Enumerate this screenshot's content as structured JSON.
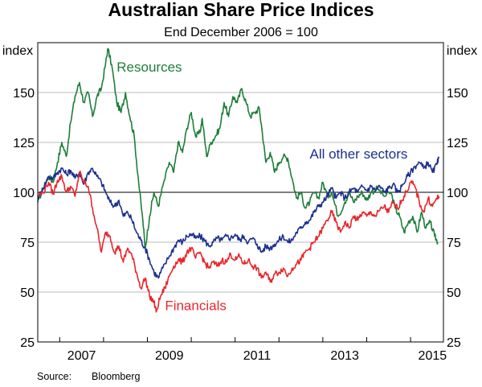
{
  "chart_data": {
    "type": "line",
    "title": "Australian Share Price Indices",
    "subtitle": "End December 2006 = 100",
    "ylabel_left": "index",
    "ylabel_right": "index",
    "ylim": [
      25,
      175
    ],
    "yticks": [
      25,
      50,
      75,
      100,
      125,
      150
    ],
    "xlim": [
      2006.5,
      2015.75
    ],
    "xticks": [
      {
        "label": "2007",
        "value": 2007.5
      },
      {
        "label": "2009",
        "value": 2009.5
      },
      {
        "label": "2011",
        "value": 2011.5
      },
      {
        "label": "2013",
        "value": 2013.5
      },
      {
        "label": "2015",
        "value": 2015.5
      }
    ],
    "reference_line": 100,
    "source_label": "Source:",
    "source_value": "Bloomberg",
    "series": [
      {
        "name": "Resources",
        "color": "#1e7d3a",
        "label": "Resources",
        "points": [
          [
            2006.5,
            95
          ],
          [
            2006.62,
            102
          ],
          [
            2006.75,
            108
          ],
          [
            2006.85,
            105
          ],
          [
            2006.95,
            115
          ],
          [
            2007.05,
            125
          ],
          [
            2007.15,
            118
          ],
          [
            2007.25,
            135
          ],
          [
            2007.35,
            148
          ],
          [
            2007.45,
            155
          ],
          [
            2007.55,
            145
          ],
          [
            2007.65,
            150
          ],
          [
            2007.75,
            138
          ],
          [
            2007.85,
            148
          ],
          [
            2007.95,
            152
          ],
          [
            2008.05,
            165
          ],
          [
            2008.1,
            172
          ],
          [
            2008.2,
            162
          ],
          [
            2008.3,
            145
          ],
          [
            2008.4,
            140
          ],
          [
            2008.5,
            150
          ],
          [
            2008.6,
            138
          ],
          [
            2008.7,
            128
          ],
          [
            2008.8,
            105
          ],
          [
            2008.9,
            85
          ],
          [
            2008.95,
            72
          ],
          [
            2009.05,
            88
          ],
          [
            2009.15,
            100
          ],
          [
            2009.25,
            93
          ],
          [
            2009.35,
            103
          ],
          [
            2009.5,
            115
          ],
          [
            2009.6,
            110
          ],
          [
            2009.7,
            125
          ],
          [
            2009.8,
            120
          ],
          [
            2009.9,
            132
          ],
          [
            2010.0,
            140
          ],
          [
            2010.1,
            128
          ],
          [
            2010.2,
            130
          ],
          [
            2010.25,
            137
          ],
          [
            2010.35,
            118
          ],
          [
            2010.45,
            125
          ],
          [
            2010.55,
            128
          ],
          [
            2010.65,
            132
          ],
          [
            2010.75,
            145
          ],
          [
            2010.85,
            138
          ],
          [
            2010.95,
            148
          ],
          [
            2011.05,
            145
          ],
          [
            2011.15,
            152
          ],
          [
            2011.25,
            145
          ],
          [
            2011.35,
            138
          ],
          [
            2011.45,
            140
          ],
          [
            2011.55,
            142
          ],
          [
            2011.62,
            130
          ],
          [
            2011.7,
            115
          ],
          [
            2011.8,
            120
          ],
          [
            2011.9,
            110
          ],
          [
            2012.0,
            115
          ],
          [
            2012.1,
            118
          ],
          [
            2012.2,
            117
          ],
          [
            2012.3,
            107
          ],
          [
            2012.4,
            97
          ],
          [
            2012.5,
            100
          ],
          [
            2012.6,
            92
          ],
          [
            2012.7,
            95
          ],
          [
            2012.8,
            100
          ],
          [
            2012.9,
            97
          ],
          [
            2013.0,
            105
          ],
          [
            2013.1,
            98
          ],
          [
            2013.2,
            100
          ],
          [
            2013.35,
            88
          ],
          [
            2013.5,
            95
          ],
          [
            2013.6,
            100
          ],
          [
            2013.7,
            95
          ],
          [
            2013.8,
            98
          ],
          [
            2013.9,
            100
          ],
          [
            2014.0,
            96
          ],
          [
            2014.1,
            100
          ],
          [
            2014.25,
            102
          ],
          [
            2014.4,
            98
          ],
          [
            2014.55,
            100
          ],
          [
            2014.65,
            92
          ],
          [
            2014.75,
            88
          ],
          [
            2014.85,
            80
          ],
          [
            2014.95,
            85
          ],
          [
            2015.05,
            88
          ],
          [
            2015.15,
            80
          ],
          [
            2015.25,
            90
          ],
          [
            2015.35,
            82
          ],
          [
            2015.45,
            85
          ],
          [
            2015.55,
            78
          ],
          [
            2015.62,
            75
          ]
        ]
      },
      {
        "name": "All other sectors",
        "color": "#1c2f8f",
        "label": "All other sectors",
        "points": [
          [
            2006.5,
            97
          ],
          [
            2006.62,
            102
          ],
          [
            2006.75,
            108
          ],
          [
            2006.85,
            107
          ],
          [
            2006.95,
            110
          ],
          [
            2007.05,
            112
          ],
          [
            2007.15,
            109
          ],
          [
            2007.25,
            111
          ],
          [
            2007.35,
            107
          ],
          [
            2007.45,
            110
          ],
          [
            2007.55,
            104
          ],
          [
            2007.65,
            110
          ],
          [
            2007.75,
            112
          ],
          [
            2007.85,
            108
          ],
          [
            2007.95,
            105
          ],
          [
            2008.05,
            100
          ],
          [
            2008.15,
            95
          ],
          [
            2008.25,
            93
          ],
          [
            2008.35,
            96
          ],
          [
            2008.45,
            88
          ],
          [
            2008.55,
            90
          ],
          [
            2008.65,
            86
          ],
          [
            2008.75,
            80
          ],
          [
            2008.85,
            76
          ],
          [
            2008.95,
            72
          ],
          [
            2009.05,
            66
          ],
          [
            2009.15,
            60
          ],
          [
            2009.25,
            57
          ],
          [
            2009.35,
            62
          ],
          [
            2009.5,
            68
          ],
          [
            2009.6,
            72
          ],
          [
            2009.7,
            76
          ],
          [
            2009.8,
            75
          ],
          [
            2009.9,
            78
          ],
          [
            2010.0,
            79
          ],
          [
            2010.1,
            77
          ],
          [
            2010.2,
            78
          ],
          [
            2010.3,
            76
          ],
          [
            2010.4,
            73
          ],
          [
            2010.5,
            75
          ],
          [
            2010.6,
            77
          ],
          [
            2010.7,
            76
          ],
          [
            2010.8,
            78
          ],
          [
            2010.9,
            77
          ],
          [
            2011.0,
            79
          ],
          [
            2011.1,
            76
          ],
          [
            2011.2,
            78
          ],
          [
            2011.3,
            75
          ],
          [
            2011.4,
            77
          ],
          [
            2011.5,
            74
          ],
          [
            2011.6,
            70
          ],
          [
            2011.7,
            73
          ],
          [
            2011.8,
            72
          ],
          [
            2011.9,
            74
          ],
          [
            2012.0,
            76
          ],
          [
            2012.1,
            78
          ],
          [
            2012.2,
            75
          ],
          [
            2012.3,
            76
          ],
          [
            2012.4,
            80
          ],
          [
            2012.5,
            82
          ],
          [
            2012.6,
            85
          ],
          [
            2012.7,
            86
          ],
          [
            2012.8,
            90
          ],
          [
            2012.9,
            93
          ],
          [
            2013.0,
            95
          ],
          [
            2013.1,
            98
          ],
          [
            2013.2,
            102
          ],
          [
            2013.3,
            97
          ],
          [
            2013.4,
            100
          ],
          [
            2013.5,
            97
          ],
          [
            2013.6,
            100
          ],
          [
            2013.7,
            102
          ],
          [
            2013.8,
            100
          ],
          [
            2013.9,
            103
          ],
          [
            2014.0,
            101
          ],
          [
            2014.1,
            103
          ],
          [
            2014.2,
            101
          ],
          [
            2014.3,
            103
          ],
          [
            2014.4,
            100
          ],
          [
            2014.5,
            102
          ],
          [
            2014.6,
            104
          ],
          [
            2014.7,
            100
          ],
          [
            2014.8,
            103
          ],
          [
            2014.9,
            107
          ],
          [
            2015.0,
            110
          ],
          [
            2015.1,
            113
          ],
          [
            2015.2,
            115
          ],
          [
            2015.3,
            112
          ],
          [
            2015.4,
            115
          ],
          [
            2015.5,
            110
          ],
          [
            2015.6,
            114
          ],
          [
            2015.65,
            117
          ]
        ]
      },
      {
        "name": "Financials",
        "color": "#e8262b",
        "label": "Financials",
        "points": [
          [
            2006.5,
            98
          ],
          [
            2006.62,
            100
          ],
          [
            2006.75,
            105
          ],
          [
            2006.85,
            99
          ],
          [
            2006.95,
            106
          ],
          [
            2007.05,
            108
          ],
          [
            2007.15,
            100
          ],
          [
            2007.25,
            103
          ],
          [
            2007.35,
            98
          ],
          [
            2007.45,
            110
          ],
          [
            2007.55,
            105
          ],
          [
            2007.65,
            103
          ],
          [
            2007.75,
            92
          ],
          [
            2007.85,
            82
          ],
          [
            2007.95,
            70
          ],
          [
            2008.05,
            80
          ],
          [
            2008.15,
            78
          ],
          [
            2008.25,
            70
          ],
          [
            2008.35,
            73
          ],
          [
            2008.45,
            65
          ],
          [
            2008.55,
            72
          ],
          [
            2008.65,
            68
          ],
          [
            2008.75,
            60
          ],
          [
            2008.85,
            52
          ],
          [
            2008.95,
            57
          ],
          [
            2009.05,
            48
          ],
          [
            2009.15,
            45
          ],
          [
            2009.2,
            40
          ],
          [
            2009.3,
            48
          ],
          [
            2009.4,
            52
          ],
          [
            2009.5,
            58
          ],
          [
            2009.6,
            63
          ],
          [
            2009.7,
            66
          ],
          [
            2009.8,
            65
          ],
          [
            2009.9,
            70
          ],
          [
            2010.0,
            72
          ],
          [
            2010.1,
            67
          ],
          [
            2010.2,
            70
          ],
          [
            2010.3,
            65
          ],
          [
            2010.4,
            62
          ],
          [
            2010.5,
            65
          ],
          [
            2010.6,
            63
          ],
          [
            2010.7,
            66
          ],
          [
            2010.8,
            65
          ],
          [
            2010.9,
            69
          ],
          [
            2011.0,
            66
          ],
          [
            2011.1,
            68
          ],
          [
            2011.2,
            64
          ],
          [
            2011.3,
            66
          ],
          [
            2011.4,
            63
          ],
          [
            2011.5,
            62
          ],
          [
            2011.6,
            57
          ],
          [
            2011.7,
            60
          ],
          [
            2011.8,
            55
          ],
          [
            2011.9,
            59
          ],
          [
            2012.0,
            60
          ],
          [
            2012.1,
            62
          ],
          [
            2012.2,
            58
          ],
          [
            2012.3,
            62
          ],
          [
            2012.4,
            64
          ],
          [
            2012.5,
            66
          ],
          [
            2012.6,
            70
          ],
          [
            2012.7,
            72
          ],
          [
            2012.8,
            75
          ],
          [
            2012.9,
            78
          ],
          [
            2013.0,
            82
          ],
          [
            2013.1,
            86
          ],
          [
            2013.2,
            90
          ],
          [
            2013.3,
            85
          ],
          [
            2013.4,
            80
          ],
          [
            2013.5,
            85
          ],
          [
            2013.6,
            82
          ],
          [
            2013.7,
            88
          ],
          [
            2013.8,
            86
          ],
          [
            2013.9,
            90
          ],
          [
            2014.0,
            88
          ],
          [
            2014.1,
            90
          ],
          [
            2014.2,
            88
          ],
          [
            2014.3,
            91
          ],
          [
            2014.4,
            93
          ],
          [
            2014.5,
            90
          ],
          [
            2014.6,
            95
          ],
          [
            2014.7,
            92
          ],
          [
            2014.8,
            96
          ],
          [
            2014.9,
            100
          ],
          [
            2015.0,
            105
          ],
          [
            2015.1,
            103
          ],
          [
            2015.2,
            95
          ],
          [
            2015.3,
            90
          ],
          [
            2015.4,
            97
          ],
          [
            2015.5,
            93
          ],
          [
            2015.6,
            97
          ],
          [
            2015.65,
            98
          ]
        ]
      }
    ]
  }
}
